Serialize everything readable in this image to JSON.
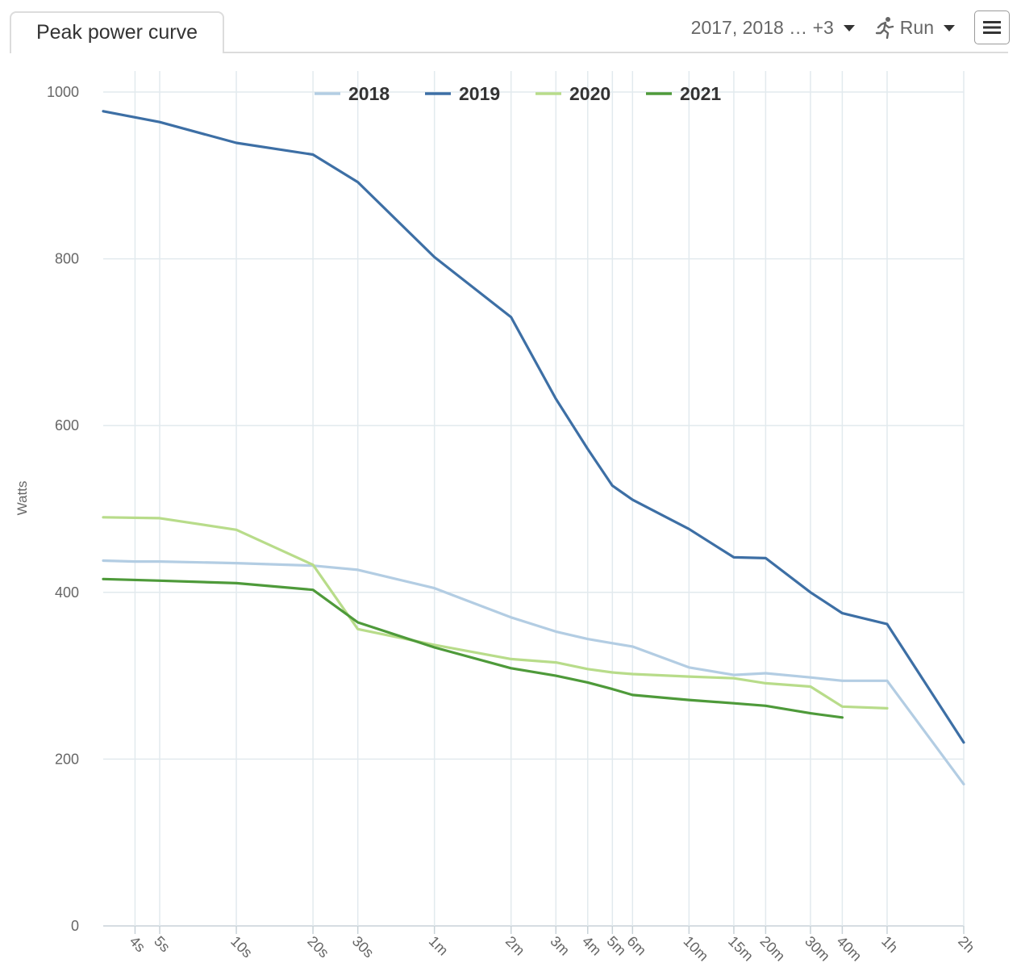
{
  "header": {
    "tab_label": "Peak power curve",
    "years_filter": "2017, 2018 … +3",
    "sport_filter": "Run",
    "sport_icon": "running-icon",
    "menu_icon": "hamburger-menu-icon"
  },
  "chart_data": {
    "type": "line",
    "title": "",
    "xlabel": "",
    "ylabel": "Watts",
    "x_scale": "log",
    "x_unit": "seconds",
    "ylim": [
      0,
      1000
    ],
    "y_ticks": [
      0,
      200,
      400,
      600,
      800,
      1000
    ],
    "x_ticks": [
      {
        "label": "4s",
        "value": 4
      },
      {
        "label": "5s",
        "value": 5
      },
      {
        "label": "10s",
        "value": 10
      },
      {
        "label": "20s",
        "value": 20
      },
      {
        "label": "30s",
        "value": 30
      },
      {
        "label": "1m",
        "value": 60
      },
      {
        "label": "2m",
        "value": 120
      },
      {
        "label": "3m",
        "value": 180
      },
      {
        "label": "4m",
        "value": 240
      },
      {
        "label": "5m",
        "value": 300
      },
      {
        "label": "6m",
        "value": 360
      },
      {
        "label": "10m",
        "value": 600
      },
      {
        "label": "15m",
        "value": 900
      },
      {
        "label": "20m",
        "value": 1200
      },
      {
        "label": "30m",
        "value": 1800
      },
      {
        "label": "40m",
        "value": 2400
      },
      {
        "label": "1h",
        "value": 3600
      },
      {
        "label": "2h",
        "value": 7200
      }
    ],
    "grid": true,
    "legend_position": "top",
    "series": [
      {
        "name": "2018",
        "color": "#b3cde3",
        "points": [
          [
            3,
            438
          ],
          [
            4,
            437
          ],
          [
            5,
            437
          ],
          [
            10,
            435
          ],
          [
            20,
            432
          ],
          [
            30,
            427
          ],
          [
            60,
            405
          ],
          [
            120,
            370
          ],
          [
            180,
            353
          ],
          [
            240,
            344
          ],
          [
            300,
            339
          ],
          [
            360,
            335
          ],
          [
            600,
            310
          ],
          [
            900,
            301
          ],
          [
            1200,
            303
          ],
          [
            1800,
            298
          ],
          [
            2400,
            294
          ],
          [
            3600,
            294
          ],
          [
            7200,
            170
          ]
        ]
      },
      {
        "name": "2019",
        "color": "#3d6fa5",
        "points": [
          [
            3,
            977
          ],
          [
            5,
            964
          ],
          [
            10,
            939
          ],
          [
            20,
            925
          ],
          [
            30,
            892
          ],
          [
            60,
            802
          ],
          [
            120,
            730
          ],
          [
            180,
            632
          ],
          [
            240,
            572
          ],
          [
            300,
            528
          ],
          [
            360,
            511
          ],
          [
            600,
            476
          ],
          [
            900,
            442
          ],
          [
            1200,
            441
          ],
          [
            1800,
            400
          ],
          [
            2400,
            375
          ],
          [
            3600,
            362
          ],
          [
            7200,
            220
          ]
        ]
      },
      {
        "name": "2020",
        "color": "#b8dc8a",
        "points": [
          [
            3,
            490
          ],
          [
            5,
            489
          ],
          [
            10,
            475
          ],
          [
            20,
            433
          ],
          [
            30,
            356
          ],
          [
            60,
            337
          ],
          [
            120,
            320
          ],
          [
            180,
            316
          ],
          [
            240,
            308
          ],
          [
            300,
            304
          ],
          [
            360,
            302
          ],
          [
            600,
            299
          ],
          [
            900,
            297
          ],
          [
            1200,
            291
          ],
          [
            1800,
            287
          ],
          [
            2400,
            263
          ],
          [
            3600,
            261
          ]
        ]
      },
      {
        "name": "2021",
        "color": "#4e9a3a",
        "points": [
          [
            3,
            416
          ],
          [
            5,
            414
          ],
          [
            10,
            411
          ],
          [
            20,
            403
          ],
          [
            30,
            364
          ],
          [
            60,
            334
          ],
          [
            120,
            309
          ],
          [
            180,
            300
          ],
          [
            240,
            292
          ],
          [
            300,
            284
          ],
          [
            360,
            277
          ],
          [
            600,
            271
          ],
          [
            900,
            267
          ],
          [
            1200,
            264
          ],
          [
            1800,
            255
          ],
          [
            2400,
            250
          ]
        ]
      }
    ]
  }
}
